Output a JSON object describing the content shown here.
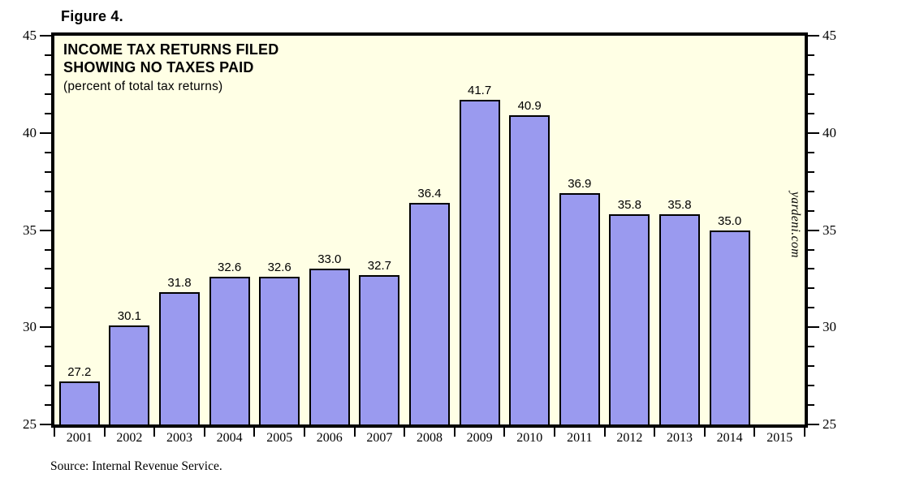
{
  "page": {
    "figure_label": "Figure 4.",
    "source_note": "Source: Internal Revenue Service.",
    "watermark": "yardeni.com"
  },
  "chart_data": {
    "type": "bar",
    "title_line1": "INCOME TAX RETURNS FILED",
    "title_line2": "SHOWING NO TAXES PAID",
    "subtitle": "(percent of total tax returns)",
    "categories": [
      "2001",
      "2002",
      "2003",
      "2004",
      "2005",
      "2006",
      "2007",
      "2008",
      "2009",
      "2010",
      "2011",
      "2012",
      "2013",
      "2014",
      "2015"
    ],
    "values": [
      27.2,
      30.1,
      31.8,
      32.6,
      32.6,
      33.0,
      32.7,
      36.4,
      41.7,
      40.9,
      36.9,
      35.8,
      35.8,
      35.0,
      null
    ],
    "value_labels": [
      "27.2",
      "30.1",
      "31.8",
      "32.6",
      "32.6",
      "33.0",
      "32.7",
      "36.4",
      "41.7",
      "40.9",
      "36.9",
      "35.8",
      "35.8",
      "35.0",
      null
    ],
    "ylabel": "",
    "xlabel": "",
    "ylim": [
      25,
      45
    ],
    "ytick_major_step": 5,
    "ytick_minor_step": 1,
    "ytick_labels": [
      "25",
      "30",
      "35",
      "40",
      "45"
    ],
    "axis_sides": "both",
    "grid": false,
    "legend": null,
    "colors": {
      "bar_fill": "#9A9AEF",
      "bar_border": "#000000",
      "plot_background": "#FFFFE5",
      "frame": "#000000",
      "text": "#000000"
    }
  }
}
